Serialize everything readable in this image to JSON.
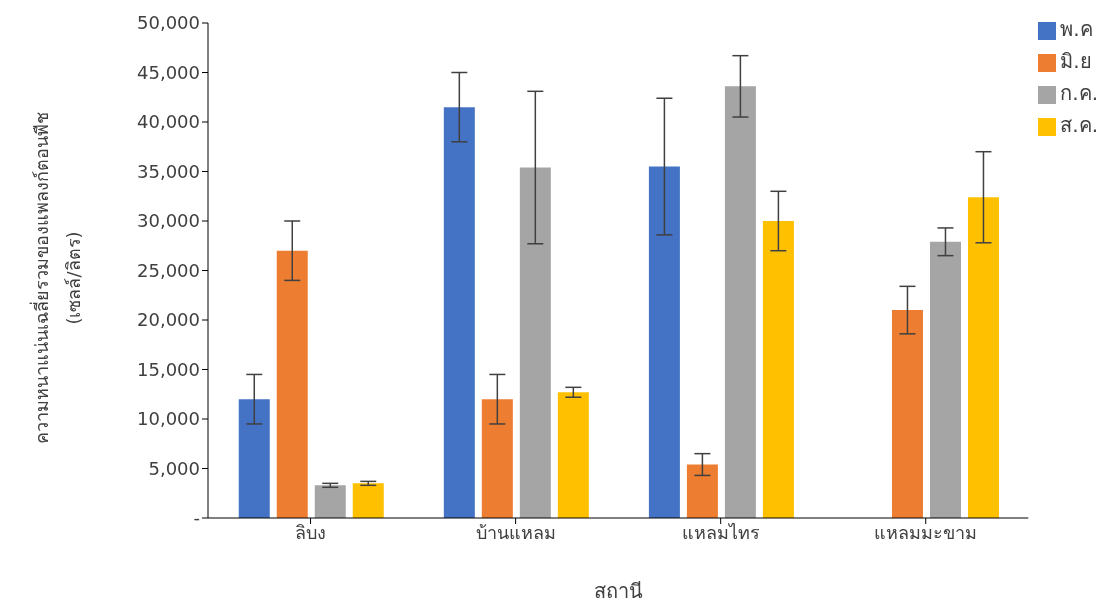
{
  "chart_data": {
    "type": "bar",
    "xlabel": "สถานี",
    "ylabel": "ความหนาแน่นเฉลี่ยรวมของแพลงก์ตอนพืช\n(เซลล์/ลิตร)",
    "categories": [
      "ลิบง",
      "บ้านแหลม",
      "แหลมไทร",
      "แหลมมะขาม"
    ],
    "series": [
      {
        "name": "พ.ค",
        "color": "#4472c4",
        "values": [
          12000,
          41500,
          35500,
          null
        ],
        "errors": [
          2500,
          3500,
          6900,
          null
        ]
      },
      {
        "name": "มิ.ย",
        "color": "#ed7d31",
        "values": [
          27000,
          12000,
          5400,
          21000
        ],
        "errors": [
          3000,
          2500,
          1100,
          2400
        ]
      },
      {
        "name": "ก.ค.",
        "color": "#a5a5a5",
        "values": [
          3300,
          35400,
          43600,
          27900
        ],
        "errors": [
          200,
          7700,
          3100,
          1400
        ]
      },
      {
        "name": "ส.ค.",
        "color": "#ffc000",
        "values": [
          3500,
          12700,
          30000,
          32400
        ],
        "errors": [
          200,
          500,
          3000,
          4600
        ]
      }
    ],
    "ylim": [
      0,
      50000
    ],
    "yticks": [
      {
        "value": 0,
        "label": "-"
      },
      {
        "value": 5000,
        "label": "5,000"
      },
      {
        "value": 10000,
        "label": "10,000"
      },
      {
        "value": 15000,
        "label": "15,000"
      },
      {
        "value": 20000,
        "label": "20,000"
      },
      {
        "value": 25000,
        "label": "25,000"
      },
      {
        "value": 30000,
        "label": "30,000"
      },
      {
        "value": 35000,
        "label": "35,000"
      },
      {
        "value": 40000,
        "label": "40,000"
      },
      {
        "value": 45000,
        "label": "45,000"
      },
      {
        "value": 50000,
        "label": "50,000"
      }
    ],
    "grid": false,
    "legend": "top right"
  }
}
